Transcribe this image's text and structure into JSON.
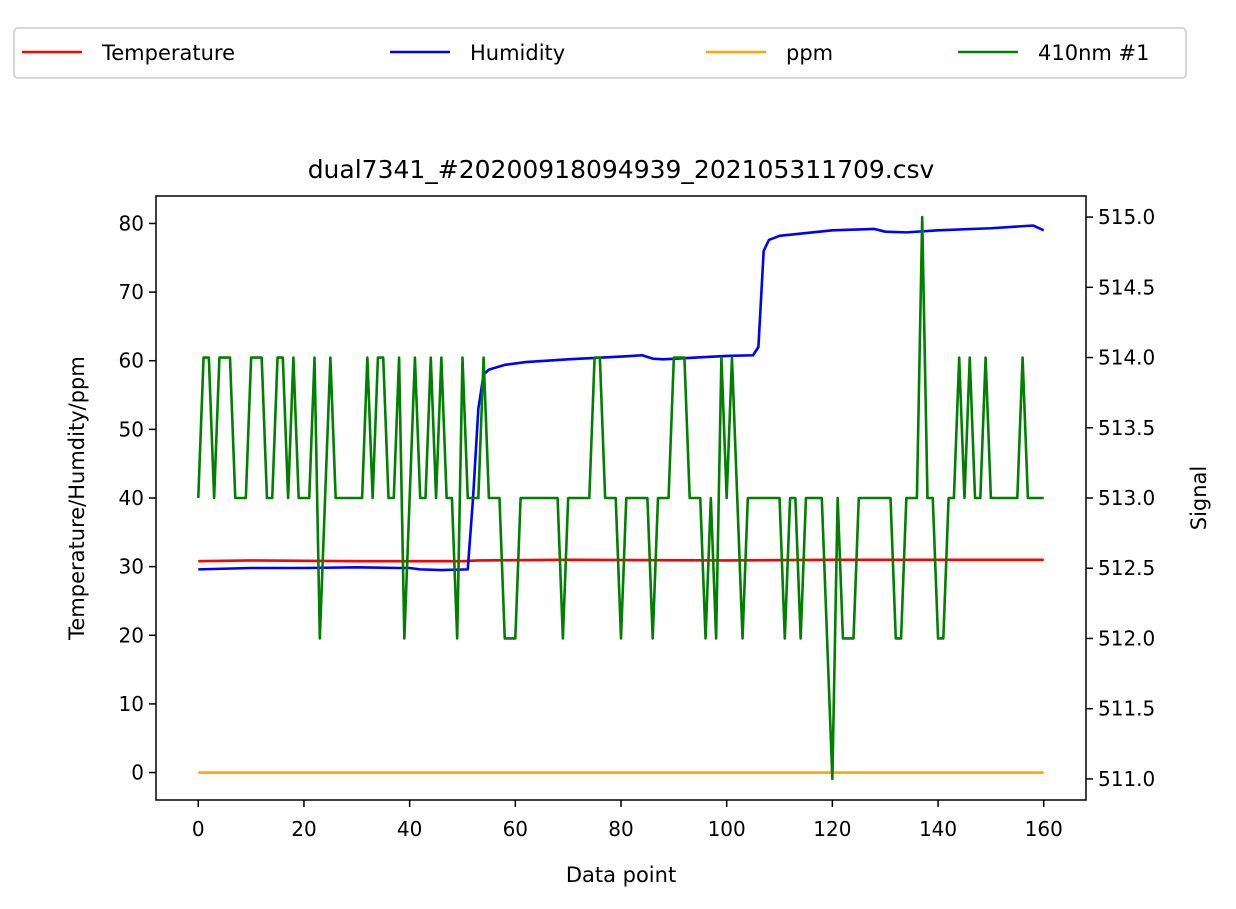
{
  "chart_data": {
    "type": "line",
    "title": "dual7341_#20200918094939_202105311709.csv",
    "xlabel": "Data point",
    "ylabel_left": "Temperature/Humdity/ppm",
    "ylabel_right": "Signal",
    "xlim": [
      -8,
      168
    ],
    "ylim_left": [
      -4,
      84
    ],
    "ylim_right": [
      510.85,
      515.15
    ],
    "xticks": [
      0,
      20,
      40,
      60,
      80,
      100,
      120,
      140,
      160
    ],
    "yticks_left": [
      0,
      10,
      20,
      30,
      40,
      50,
      60,
      70,
      80
    ],
    "yticks_right": [
      "511.0",
      "511.5",
      "512.0",
      "512.5",
      "513.0",
      "513.5",
      "514.0",
      "514.5",
      "515.0"
    ],
    "legend_position": "top, above plot, 4 columns",
    "grid": false,
    "series": [
      {
        "name": "Temperature",
        "axis": "left",
        "color": "#ff0000",
        "points": [
          [
            0,
            30.8
          ],
          [
            10,
            30.9
          ],
          [
            30,
            30.8
          ],
          [
            50,
            30.8
          ],
          [
            53,
            30.9
          ],
          [
            70,
            31.0
          ],
          [
            100,
            30.9
          ],
          [
            120,
            31.0
          ],
          [
            140,
            31.0
          ],
          [
            160,
            31.0
          ]
        ]
      },
      {
        "name": "Humidity",
        "axis": "left",
        "color": "#0000ff",
        "points": [
          [
            0,
            29.6
          ],
          [
            10,
            29.8
          ],
          [
            20,
            29.8
          ],
          [
            30,
            29.9
          ],
          [
            38,
            29.8
          ],
          [
            40,
            29.8
          ],
          [
            42,
            29.6
          ],
          [
            46,
            29.5
          ],
          [
            51,
            29.6
          ],
          [
            52,
            40.0
          ],
          [
            53,
            53.0
          ],
          [
            54,
            58.0
          ],
          [
            55,
            58.7
          ],
          [
            58,
            59.4
          ],
          [
            62,
            59.8
          ],
          [
            70,
            60.2
          ],
          [
            80,
            60.6
          ],
          [
            84,
            60.8
          ],
          [
            86,
            60.3
          ],
          [
            88,
            60.2
          ],
          [
            95,
            60.5
          ],
          [
            100,
            60.7
          ],
          [
            105,
            60.8
          ],
          [
            106,
            62.0
          ],
          [
            107,
            76.0
          ],
          [
            108,
            77.6
          ],
          [
            110,
            78.2
          ],
          [
            115,
            78.6
          ],
          [
            120,
            79.0
          ],
          [
            128,
            79.2
          ],
          [
            130,
            78.8
          ],
          [
            134,
            78.7
          ],
          [
            140,
            79.0
          ],
          [
            150,
            79.3
          ],
          [
            158,
            79.7
          ],
          [
            160,
            79.0
          ]
        ]
      },
      {
        "name": "ppm",
        "axis": "left",
        "color": "#ffa500",
        "points": [
          [
            0,
            0
          ],
          [
            160,
            0
          ]
        ]
      },
      {
        "name": "410nm #1",
        "axis": "right",
        "color": "#008000",
        "points": [
          [
            0,
            513
          ],
          [
            1,
            514
          ],
          [
            2,
            514
          ],
          [
            3,
            513
          ],
          [
            4,
            514
          ],
          [
            5,
            514
          ],
          [
            6,
            514
          ],
          [
            7,
            513
          ],
          [
            8,
            513
          ],
          [
            9,
            513
          ],
          [
            10,
            514
          ],
          [
            11,
            514
          ],
          [
            12,
            514
          ],
          [
            13,
            513
          ],
          [
            14,
            513
          ],
          [
            15,
            514
          ],
          [
            16,
            514
          ],
          [
            17,
            513
          ],
          [
            18,
            514
          ],
          [
            19,
            513
          ],
          [
            20,
            513
          ],
          [
            21,
            513
          ],
          [
            22,
            514
          ],
          [
            23,
            512
          ],
          [
            24,
            513
          ],
          [
            25,
            514
          ],
          [
            26,
            513
          ],
          [
            27,
            513
          ],
          [
            28,
            513
          ],
          [
            29,
            513
          ],
          [
            30,
            513
          ],
          [
            31,
            513
          ],
          [
            32,
            514
          ],
          [
            33,
            513
          ],
          [
            34,
            514
          ],
          [
            35,
            514
          ],
          [
            36,
            513
          ],
          [
            37,
            513
          ],
          [
            38,
            514
          ],
          [
            39,
            512
          ],
          [
            40,
            513
          ],
          [
            41,
            514
          ],
          [
            42,
            513
          ],
          [
            43,
            513
          ],
          [
            44,
            514
          ],
          [
            45,
            513
          ],
          [
            46,
            514
          ],
          [
            47,
            513
          ],
          [
            48,
            513
          ],
          [
            49,
            512
          ],
          [
            50,
            514
          ],
          [
            51,
            513
          ],
          [
            52,
            513
          ],
          [
            53,
            513
          ],
          [
            54,
            514
          ],
          [
            55,
            513
          ],
          [
            56,
            513
          ],
          [
            57,
            513
          ],
          [
            58,
            512
          ],
          [
            59,
            512
          ],
          [
            60,
            512
          ],
          [
            61,
            513
          ],
          [
            62,
            513
          ],
          [
            63,
            513
          ],
          [
            64,
            513
          ],
          [
            65,
            513
          ],
          [
            66,
            513
          ],
          [
            67,
            513
          ],
          [
            68,
            513
          ],
          [
            69,
            512
          ],
          [
            70,
            513
          ],
          [
            71,
            513
          ],
          [
            72,
            513
          ],
          [
            73,
            513
          ],
          [
            74,
            513
          ],
          [
            75,
            514
          ],
          [
            76,
            514
          ],
          [
            77,
            513
          ],
          [
            78,
            513
          ],
          [
            79,
            513
          ],
          [
            80,
            512
          ],
          [
            81,
            513
          ],
          [
            82,
            513
          ],
          [
            83,
            513
          ],
          [
            84,
            513
          ],
          [
            85,
            513
          ],
          [
            86,
            512
          ],
          [
            87,
            513
          ],
          [
            88,
            513
          ],
          [
            89,
            513
          ],
          [
            90,
            514
          ],
          [
            91,
            514
          ],
          [
            92,
            514
          ],
          [
            93,
            513
          ],
          [
            94,
            513
          ],
          [
            95,
            513
          ],
          [
            96,
            512
          ],
          [
            97,
            513
          ],
          [
            98,
            512
          ],
          [
            99,
            514
          ],
          [
            100,
            513
          ],
          [
            101,
            514
          ],
          [
            102,
            513
          ],
          [
            103,
            512
          ],
          [
            104,
            513
          ],
          [
            105,
            513
          ],
          [
            106,
            513
          ],
          [
            107,
            513
          ],
          [
            108,
            513
          ],
          [
            109,
            513
          ],
          [
            110,
            513
          ],
          [
            111,
            512
          ],
          [
            112,
            513
          ],
          [
            113,
            513
          ],
          [
            114,
            512
          ],
          [
            115,
            513
          ],
          [
            116,
            513
          ],
          [
            117,
            513
          ],
          [
            118,
            513
          ],
          [
            119,
            512
          ],
          [
            120,
            511
          ],
          [
            121,
            513
          ],
          [
            122,
            512
          ],
          [
            123,
            512
          ],
          [
            124,
            512
          ],
          [
            125,
            513
          ],
          [
            126,
            513
          ],
          [
            127,
            513
          ],
          [
            128,
            513
          ],
          [
            129,
            513
          ],
          [
            130,
            513
          ],
          [
            131,
            513
          ],
          [
            132,
            512
          ],
          [
            133,
            512
          ],
          [
            134,
            513
          ],
          [
            135,
            513
          ],
          [
            136,
            513
          ],
          [
            137,
            515
          ],
          [
            138,
            513
          ],
          [
            139,
            513
          ],
          [
            140,
            512
          ],
          [
            141,
            512
          ],
          [
            142,
            513
          ],
          [
            143,
            513
          ],
          [
            144,
            514
          ],
          [
            145,
            513
          ],
          [
            146,
            514
          ],
          [
            147,
            513
          ],
          [
            148,
            513
          ],
          [
            149,
            514
          ],
          [
            150,
            513
          ],
          [
            151,
            513
          ],
          [
            152,
            513
          ],
          [
            153,
            513
          ],
          [
            154,
            513
          ],
          [
            155,
            513
          ],
          [
            156,
            514
          ],
          [
            157,
            513
          ],
          [
            158,
            513
          ],
          [
            159,
            513
          ],
          [
            160,
            513
          ]
        ]
      }
    ]
  }
}
